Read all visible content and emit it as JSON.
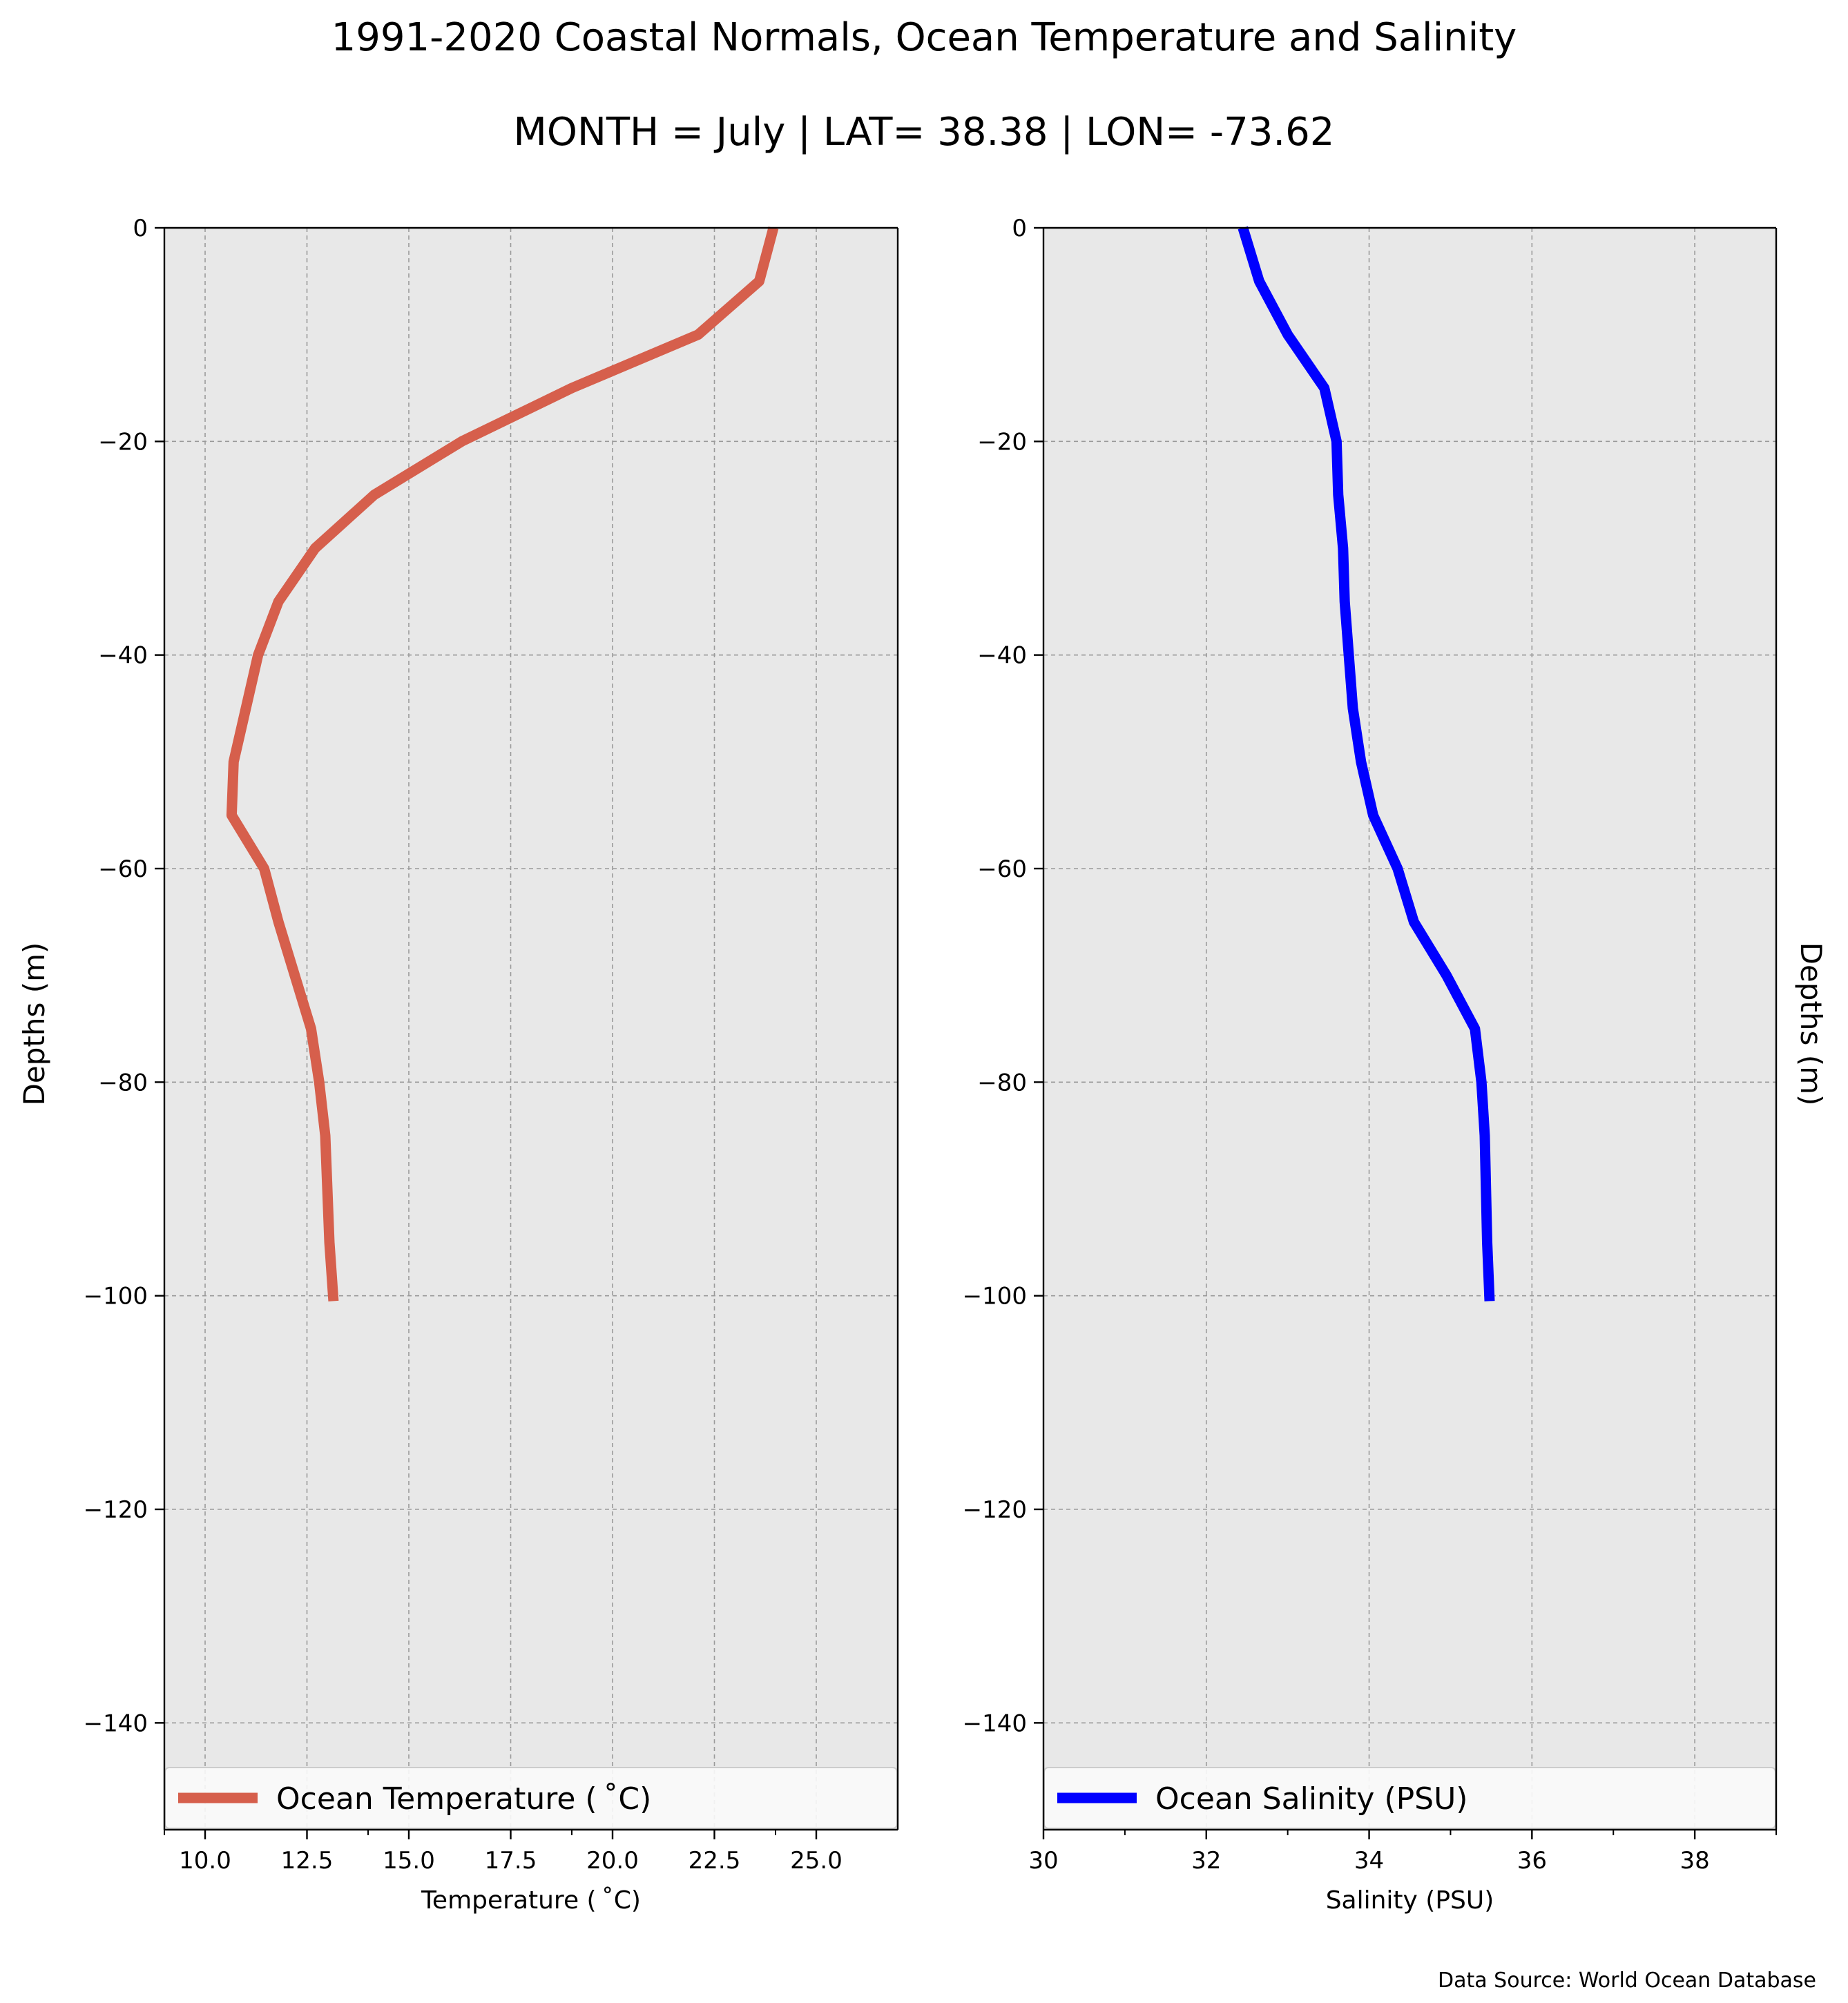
{
  "figure": {
    "title_line1": "1991-2020 Coastal Normals, Ocean Temperature and Salinity",
    "title_line2": "MONTH = July | LAT= 38.38 | LON= -73.62",
    "source_note": "Data Source: World Ocean Database",
    "background_color": "#e8e8e8",
    "grid_color": "#9a9a9a"
  },
  "chart_data": [
    {
      "type": "line",
      "xlabel": "Temperature ($^\\circ$C)",
      "xlabel_display": "Temperature ( ˚C)",
      "ylabel": "Depths (m)",
      "xlim": [
        9,
        27
      ],
      "ylim": [
        -150,
        0
      ],
      "xticks": [
        10.0,
        12.5,
        15.0,
        17.5,
        20.0,
        22.5,
        25.0
      ],
      "xtick_labels": [
        "10.0",
        "12.5",
        "15.0",
        "17.5",
        "20.0",
        "22.5",
        "25.0"
      ],
      "minor_xticks": [
        9,
        14,
        19,
        24
      ],
      "yticks": [
        0,
        -20,
        -40,
        -60,
        -80,
        -100,
        -120,
        -140
      ],
      "ytick_labels": [
        "0",
        "−20",
        "−40",
        "−60",
        "−80",
        "−100",
        "−120",
        "−140"
      ],
      "grid": true,
      "legend_position": "bottom",
      "series": [
        {
          "name": "Ocean Temperature ( ˚C)",
          "color": "#d65f4c",
          "x": [
            23.95,
            23.6,
            22.1,
            19.0,
            16.3,
            14.15,
            12.7,
            11.8,
            11.3,
            10.7,
            10.65,
            11.45,
            11.8,
            12.6,
            12.8,
            12.95,
            13.05,
            13.15
          ],
          "y": [
            0,
            -5,
            -10,
            -15,
            -20,
            -25,
            -30,
            -35,
            -40,
            -50,
            -55,
            -60,
            -65,
            -75,
            -80,
            -85,
            -95,
            -100.5
          ]
        }
      ]
    },
    {
      "type": "line",
      "xlabel": "Salinity (PSU)",
      "ylabel": "Depths (m)",
      "xlim": [
        30,
        39
      ],
      "ylim": [
        -150,
        0
      ],
      "xticks": [
        30,
        32,
        34,
        36,
        38
      ],
      "xtick_labels": [
        "30",
        "32",
        "34",
        "36",
        "38"
      ],
      "minor_xticks": [
        31,
        33,
        35,
        37,
        39
      ],
      "yticks": [
        0,
        -20,
        -40,
        -60,
        -80,
        -100,
        -120,
        -140
      ],
      "ytick_labels": [
        "0",
        "−20",
        "−40",
        "−60",
        "−80",
        "−100",
        "−120",
        "−140"
      ],
      "grid": true,
      "legend_position": "bottom",
      "series": [
        {
          "name": "Ocean Salinity (PSU)",
          "color": "#0000ff",
          "x": [
            32.45,
            32.65,
            33.0,
            33.45,
            33.6,
            33.62,
            33.68,
            33.7,
            33.75,
            33.8,
            33.9,
            34.05,
            34.35,
            34.55,
            34.95,
            35.3,
            35.38,
            35.42,
            35.45,
            35.48
          ],
          "y": [
            0,
            -5,
            -10,
            -15,
            -20,
            -25,
            -30,
            -35,
            -40,
            -45,
            -50,
            -55,
            -60,
            -65,
            -70,
            -75,
            -80,
            -85,
            -95,
            -100.5
          ]
        }
      ]
    }
  ]
}
